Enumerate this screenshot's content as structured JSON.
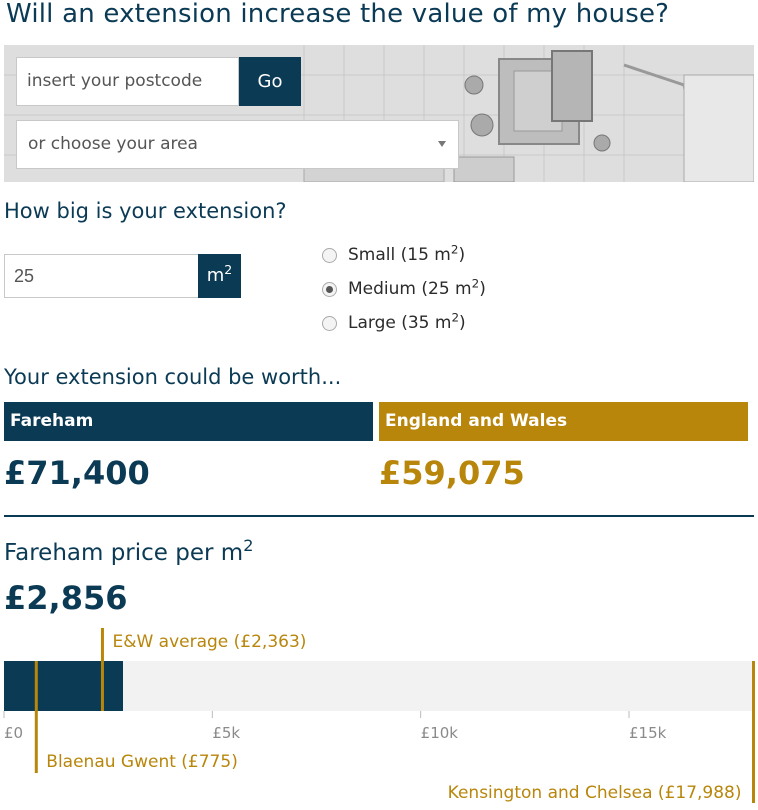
{
  "title": "Will an extension increase the value of my house?",
  "search": {
    "postcode_placeholder": "insert your postcode",
    "go_label": "Go",
    "area_select_value": "or choose your area"
  },
  "size_section": {
    "question": "How big is your extension?",
    "input_value": "25",
    "unit": "m",
    "unit_sup": "2",
    "options": [
      {
        "label": "Small (15 m",
        "sup": "2",
        "close": ")",
        "selected": false
      },
      {
        "label": "Medium (25 m",
        "sup": "2",
        "close": ")",
        "selected": true
      },
      {
        "label": "Large (35 m",
        "sup": "2",
        "close": ")",
        "selected": false
      }
    ]
  },
  "worth": {
    "heading": "Your extension could be worth...",
    "local_name": "Fareham",
    "local_value": "£71,400",
    "ew_name": "England and Wales",
    "ew_value": "£59,075"
  },
  "price_per_m2": {
    "label": "Fareham price per m",
    "label_sup": "2",
    "value": "£2,856"
  },
  "colors": {
    "navy": "#0b3a55",
    "gold": "#b8860b",
    "track": "#f2f2f2"
  },
  "chart_data": {
    "type": "bar",
    "orientation": "horizontal",
    "xlim": [
      0,
      18000
    ],
    "ticks": [
      {
        "value": 0,
        "label": "£0"
      },
      {
        "value": 5000,
        "label": "£5k"
      },
      {
        "value": 10000,
        "label": "£10k"
      },
      {
        "value": 15000,
        "label": "£15k"
      }
    ],
    "bar": {
      "name": "Fareham",
      "value": 2856
    },
    "markers": [
      {
        "name": "E&W average (£2,363)",
        "value": 2363,
        "placement": "above"
      },
      {
        "name": "Blaenau Gwent (£775)",
        "value": 775,
        "placement": "below"
      },
      {
        "name": "Kensington and Chelsea (£17,988)",
        "value": 17988,
        "placement": "below-far"
      }
    ]
  }
}
